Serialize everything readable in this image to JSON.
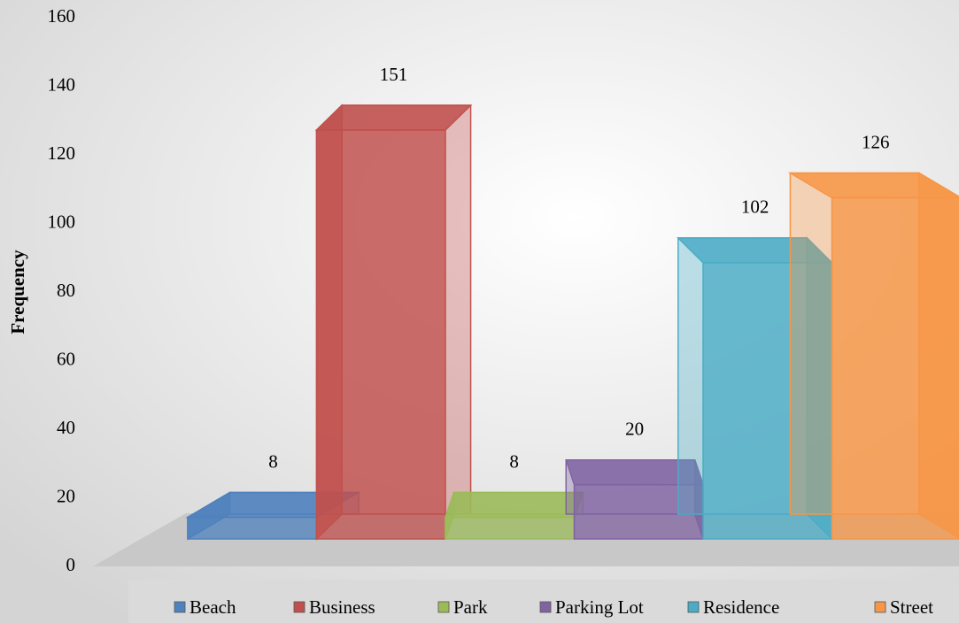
{
  "chart_data": {
    "type": "bar3d",
    "y_label": "Frequency",
    "series": [
      {
        "name": "Beach",
        "color": "#4f81bd",
        "values": [
          8
        ]
      },
      {
        "name": "Business",
        "color": "#c0504d",
        "values": [
          151
        ]
      },
      {
        "name": "Park",
        "color": "#9bbb59",
        "values": [
          8
        ]
      },
      {
        "name": "Parking Lot",
        "color": "#8064a2",
        "values": [
          20
        ]
      },
      {
        "name": "Residence",
        "color": "#4bacc6",
        "values": [
          102
        ]
      },
      {
        "name": "Street",
        "color": "#f79646",
        "values": [
          126
        ]
      }
    ],
    "ylim": [
      0,
      160
    ],
    "yticks": [
      0,
      20,
      40,
      60,
      80,
      100,
      120,
      140,
      160
    ],
    "legend": "bottom"
  }
}
